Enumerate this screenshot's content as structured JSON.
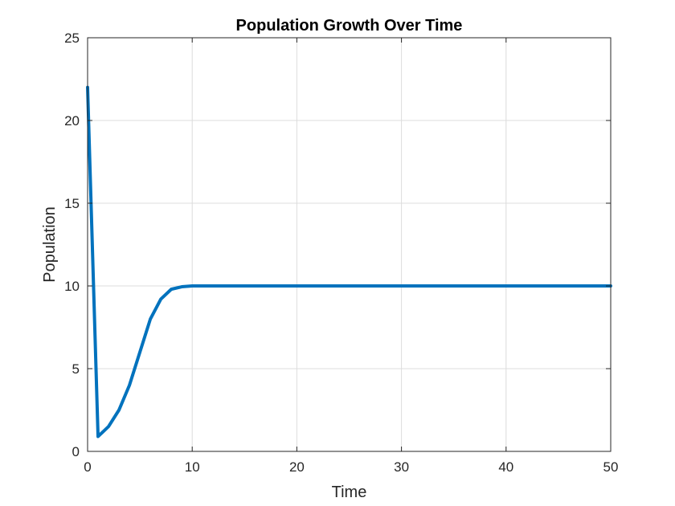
{
  "chart_data": {
    "type": "line",
    "title": "Population Growth Over Time",
    "xlabel": "Time",
    "ylabel": "Population",
    "xlim": [
      0,
      50
    ],
    "ylim": [
      0,
      25
    ],
    "xticks": [
      0,
      10,
      20,
      30,
      40,
      50
    ],
    "yticks": [
      0,
      5,
      10,
      15,
      20,
      25
    ],
    "grid": true,
    "series": [
      {
        "color": "#0072BD",
        "x": [
          0,
          1,
          2,
          3,
          4,
          5,
          6,
          7,
          8,
          9,
          10,
          11,
          12,
          15,
          20,
          25,
          30,
          35,
          40,
          45,
          50
        ],
        "y": [
          22,
          0.9,
          1.5,
          2.5,
          4.0,
          6.0,
          8.0,
          9.2,
          9.8,
          9.95,
          10.0,
          10.0,
          10.0,
          10.0,
          10.0,
          10.0,
          10.0,
          10.0,
          10.0,
          10.0,
          10.0
        ]
      }
    ]
  }
}
